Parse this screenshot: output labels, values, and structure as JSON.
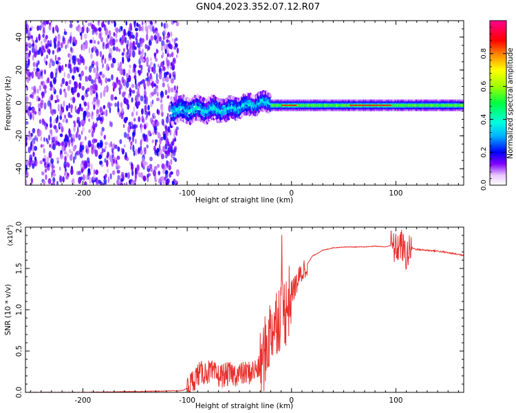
{
  "title": "GN04.2023.352.07.12.R07",
  "chart_data": [
    {
      "type": "heatmap",
      "title": "GN04.2023.352.07.12.R07",
      "xlabel": "Height of straight line (km)",
      "ylabel": "Frequency (Hz)",
      "xlim": [
        -255,
        165
      ],
      "ylim": [
        -50,
        50
      ],
      "x_ticks": [
        -200,
        -100,
        0,
        100
      ],
      "x_tick_labels": [
        "-200",
        "-100",
        "0",
        "100"
      ],
      "y_ticks": [
        -40,
        -20,
        0,
        20,
        40
      ],
      "y_tick_labels": [
        "-40",
        "-20",
        "0",
        "20",
        "40"
      ],
      "colorbar": {
        "label": "Normalized spectral amplitude",
        "range": [
          0,
          1
        ],
        "ticks": [
          0.0,
          0.2,
          0.4,
          0.6,
          0.8
        ],
        "tick_labels": [
          "0.0",
          "0.2",
          "0.4",
          "0.6",
          "0.8"
        ]
      },
      "regions": [
        {
          "x_range": [
            -255,
            -115
          ],
          "description_value": "broadband noise, amplitude ~0.0-0.15"
        },
        {
          "x_range": [
            -115,
            -20
          ],
          "center_freq_hz": -3,
          "peak_amplitude": 0.35
        },
        {
          "x_range": [
            -20,
            165
          ],
          "center_freq_hz": -1.5,
          "peak_amplitude": 0.95
        }
      ]
    },
    {
      "type": "line",
      "xlabel": "Height of straight line (km)",
      "ylabel": "SNR (10 * v/v)",
      "y_exponent_label": "(x10",
      "y_exponent_power": "4",
      "y_exponent_close": ")",
      "xlim": [
        -255,
        165
      ],
      "ylim": [
        0,
        2.0
      ],
      "x_ticks": [
        -200,
        -100,
        0,
        100
      ],
      "x_tick_labels": [
        "-200",
        "-100",
        "0",
        "100"
      ],
      "y_ticks": [
        0.0,
        0.5,
        1.0,
        1.5,
        2.0
      ],
      "y_tick_labels": [
        "0.0",
        "0.5",
        "1.0",
        "1.5",
        "2.0"
      ],
      "series": [
        {
          "name": "SNR",
          "color": "#e8302c",
          "x": [
            -255,
            -200,
            -150,
            -105,
            -100,
            -90,
            -80,
            -70,
            -60,
            -50,
            -40,
            -30,
            -25,
            -20,
            -15,
            -10,
            -5,
            0,
            10,
            20,
            30,
            40,
            50,
            60,
            70,
            80,
            90,
            95,
            100,
            105,
            110,
            115,
            120,
            140,
            165
          ],
          "y": [
            0.0,
            0.0,
            0.01,
            0.02,
            0.05,
            0.22,
            0.25,
            0.2,
            0.22,
            0.22,
            0.24,
            0.3,
            0.5,
            0.75,
            0.9,
            0.95,
            1.0,
            1.2,
            1.45,
            1.65,
            1.72,
            1.75,
            1.76,
            1.76,
            1.76,
            1.77,
            1.76,
            1.78,
            1.73,
            1.8,
            1.65,
            1.75,
            1.73,
            1.71,
            1.66
          ]
        }
      ],
      "noise_amplitude": [
        {
          "x_range": [
            -100,
            -30
          ],
          "amplitude": 0.15
        },
        {
          "x_range": [
            -30,
            0
          ],
          "amplitude": 0.45
        },
        {
          "x_range": [
            0,
            15
          ],
          "amplitude": 0.15
        },
        {
          "x_range": [
            95,
            115
          ],
          "amplitude": 0.2
        },
        {
          "x_range": [
            115,
            165
          ],
          "amplitude": 0.01
        }
      ]
    }
  ]
}
